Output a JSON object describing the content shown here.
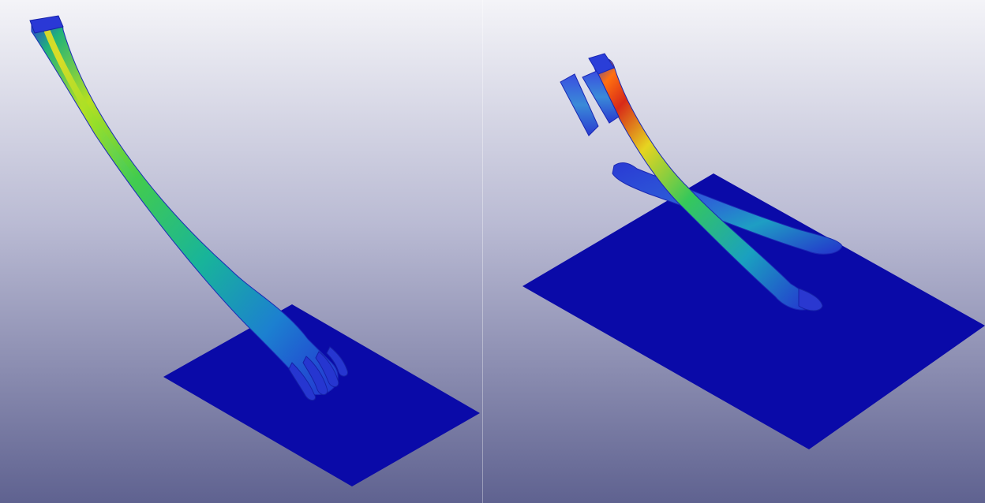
{
  "viewports": [
    {
      "label": "",
      "scene": "single-bone-on-plate"
    },
    {
      "label": "",
      "scene": "fractured-bone-on-plate"
    }
  ],
  "colors": {
    "background_top": "#f4f4f8",
    "background_bottom": "#5f6290",
    "plate": "#0a0aa8",
    "contour_low": "#1f2fd0",
    "contour_mid_low": "#1aa0c8",
    "contour_mid": "#20c070",
    "contour_mid_high": "#b8e020",
    "contour_high": "#ff6a10",
    "contour_peak": "#d81818"
  }
}
